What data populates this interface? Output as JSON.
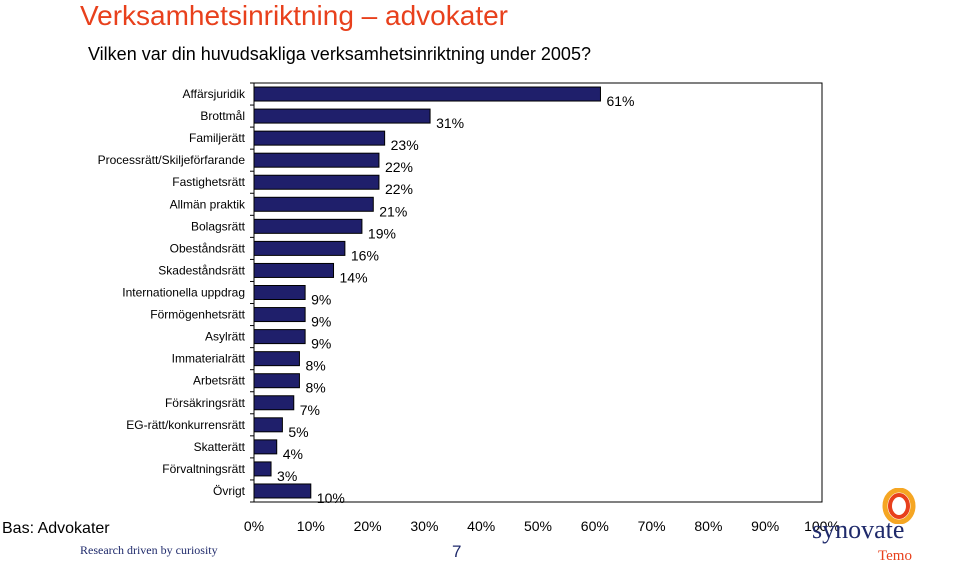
{
  "header": {
    "title": "Verksamhetsinriktning – advokater",
    "subtitle": "Vilken var din huvudsakliga verksamhetsinriktning under 2005?"
  },
  "footer": {
    "base_label": "Bas: Advokater",
    "tagline": "Research driven by curiosity",
    "page_number": "7"
  },
  "logo": {
    "brand": "synovate",
    "sub": "Temo"
  },
  "colors": {
    "bar_fill": "#1f1f6b",
    "title": "#e8401c",
    "brand_navy": "#1f2a6b"
  },
  "chart_data": {
    "type": "bar",
    "orientation": "horizontal",
    "categories": [
      "Affärsjuridik",
      "Brottmål",
      "Familjerätt",
      "Processrätt/Skiljeförfarande",
      "Fastighetsrätt",
      "Allmän praktik",
      "Bolagsrätt",
      "Obeståndsrätt",
      "Skadeståndsrätt",
      "Internationella uppdrag",
      "Förmögenhetsrätt",
      "Asylrätt",
      "Immaterialrätt",
      "Arbetsrätt",
      "Försäkringsrätt",
      "EG-rätt/konkurrensrätt",
      "Skatterätt",
      "Förvaltningsrätt",
      "Övrigt"
    ],
    "values": [
      61,
      31,
      23,
      22,
      22,
      21,
      19,
      16,
      14,
      9,
      9,
      9,
      8,
      8,
      7,
      5,
      4,
      3,
      10
    ],
    "value_labels": [
      "61%",
      "31%",
      "23%",
      "22%",
      "22%",
      "21%",
      "19%",
      "16%",
      "14%",
      "9%",
      "9%",
      "9%",
      "8%",
      "8%",
      "7%",
      "5%",
      "4%",
      "3%",
      "10%"
    ],
    "x_ticks": [
      "0%",
      "10%",
      "20%",
      "30%",
      "40%",
      "50%",
      "60%",
      "70%",
      "80%",
      "90%",
      "100%"
    ],
    "xlim": [
      0,
      100
    ],
    "grid": false,
    "legend": "none"
  }
}
